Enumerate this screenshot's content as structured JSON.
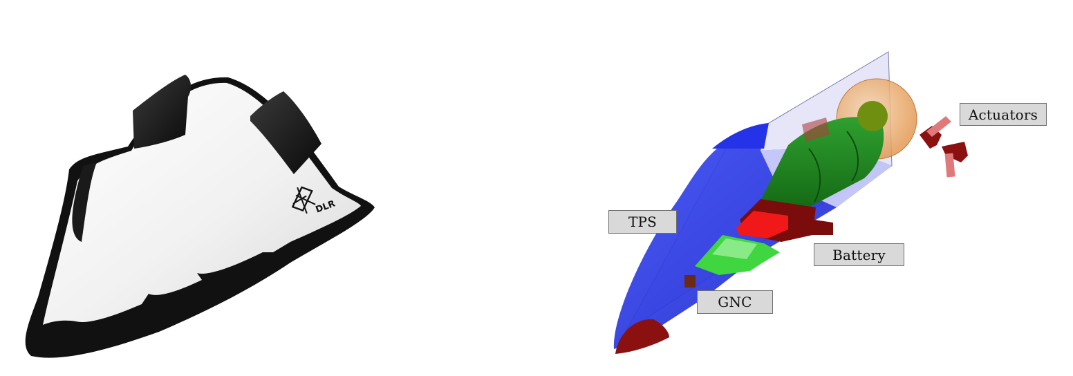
{
  "left_view": {
    "logo": {
      "icon": "dlr-emblem-icon",
      "text": "DLR"
    }
  },
  "right_view": {
    "labels": {
      "actuators": "Actuators",
      "tps": "TPS",
      "battery": "Battery",
      "gnc": "GNC"
    }
  },
  "colors": {
    "hull_white": "#f4f4f4",
    "hull_black": "#111111",
    "tps_blue": "#1f2fe0",
    "structure_green": "#1e7a1e",
    "battery_red": "#e61414",
    "gnc_green": "#42d442",
    "actuator_darkred": "#8b1010",
    "actuator_pink": "#e07a7a",
    "tank_orange": "#f0b070",
    "callout_fill": "#d9d9d9"
  }
}
